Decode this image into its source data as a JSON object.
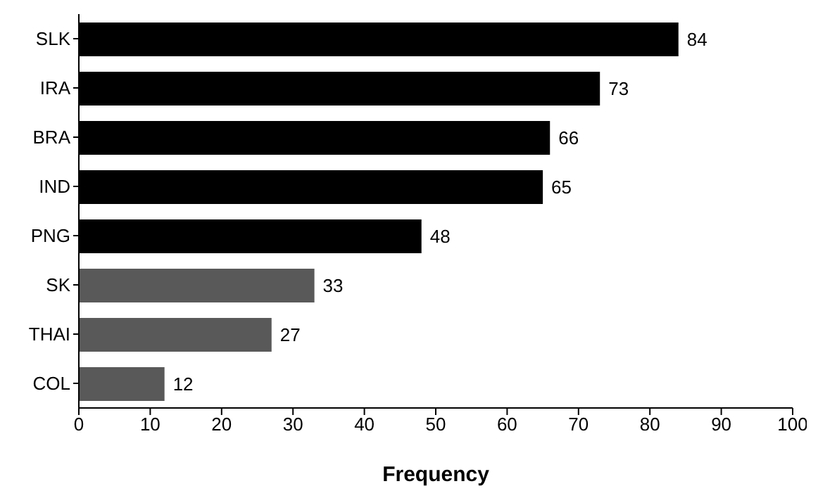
{
  "chart_data": {
    "type": "bar",
    "orientation": "horizontal",
    "xlabel": "Frequency",
    "categories": [
      "SLK",
      "IRA",
      "BRA",
      "IND",
      "PNG",
      "SK",
      "THAI",
      "COL"
    ],
    "values": [
      84,
      73,
      66,
      65,
      48,
      33,
      27,
      12
    ],
    "colors": [
      "#000000",
      "#000000",
      "#000000",
      "#000000",
      "#000000",
      "#595959",
      "#595959",
      "#595959"
    ],
    "xlim": [
      0,
      100
    ],
    "xticks": [
      0,
      10,
      20,
      30,
      40,
      50,
      60,
      70,
      80,
      90,
      100
    ],
    "data_labels": true,
    "grid": false,
    "legend": false
  }
}
